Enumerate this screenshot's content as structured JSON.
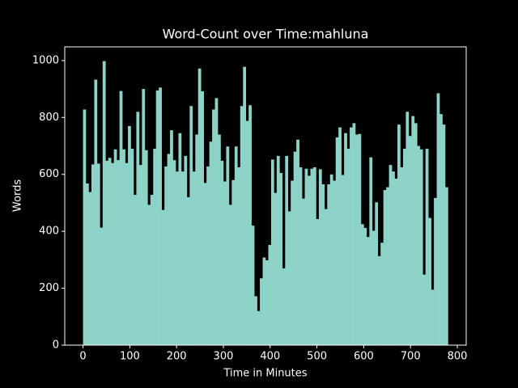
{
  "chart_data": {
    "type": "bar",
    "title": "Word-Count over Time:mahluna",
    "xlabel": "Time in Minutes",
    "ylabel": "Words",
    "background": "#000000",
    "color": "#8dd3c7",
    "x": [
      0,
      6,
      12,
      18,
      24,
      30,
      36,
      42,
      48,
      54,
      60,
      66,
      72,
      78,
      84,
      90,
      96,
      102,
      108,
      114,
      120,
      126,
      132,
      138,
      144,
      150,
      156,
      162,
      168,
      174,
      180,
      186,
      192,
      198,
      204,
      210,
      216,
      222,
      228,
      234,
      240,
      246,
      252,
      258,
      264,
      270,
      276,
      282,
      288,
      294,
      300,
      306,
      312,
      318,
      324,
      330,
      336,
      342,
      348,
      354,
      360,
      366,
      372,
      378,
      384,
      390,
      396,
      402,
      408,
      414,
      420,
      426,
      432,
      438,
      444,
      450,
      456,
      462,
      468,
      474,
      480,
      486,
      492,
      498,
      504,
      510,
      516,
      522,
      528,
      534,
      540,
      546,
      552,
      558,
      564,
      570,
      576,
      582,
      588,
      594,
      600,
      606,
      612,
      618,
      624,
      630,
      636,
      642,
      648,
      654,
      660,
      666,
      672,
      678,
      684,
      690,
      696,
      702,
      708,
      714,
      720,
      726,
      732,
      738,
      744,
      750,
      756,
      762,
      768,
      774
    ],
    "values": [
      828,
      568,
      538,
      635,
      933,
      638,
      413,
      998,
      648,
      658,
      640,
      688,
      650,
      893,
      688,
      640,
      770,
      690,
      528,
      820,
      633,
      900,
      685,
      493,
      528,
      690,
      895,
      905,
      475,
      628,
      672,
      755,
      650,
      610,
      745,
      610,
      665,
      520,
      840,
      610,
      740,
      972,
      892,
      570,
      628,
      715,
      828,
      868,
      740,
      648,
      575,
      698,
      493,
      580,
      698,
      625,
      840,
      978,
      788,
      843,
      420,
      172,
      120,
      235,
      308,
      298,
      352,
      652,
      535,
      665,
      605,
      270,
      665,
      470,
      578,
      680,
      722,
      625,
      515,
      620,
      595,
      620,
      625,
      443,
      618,
      565,
      478,
      565,
      600,
      578,
      730,
      765,
      598,
      745,
      690,
      765,
      780,
      740,
      742,
      425,
      412,
      380,
      660,
      402,
      502,
      313,
      360,
      545,
      555,
      633,
      610,
      585,
      775,
      625,
      690,
      820,
      735,
      805,
      780,
      700,
      688,
      248,
      690,
      447,
      195,
      517,
      885,
      812,
      775,
      555
    ],
    "xlim": [
      -39,
      819
    ],
    "xticks": [
      0,
      100,
      200,
      300,
      400,
      500,
      600,
      700,
      800
    ],
    "ylim": [
      0,
      1048
    ],
    "yticks": [
      0,
      200,
      400,
      600,
      800,
      1000
    ]
  }
}
